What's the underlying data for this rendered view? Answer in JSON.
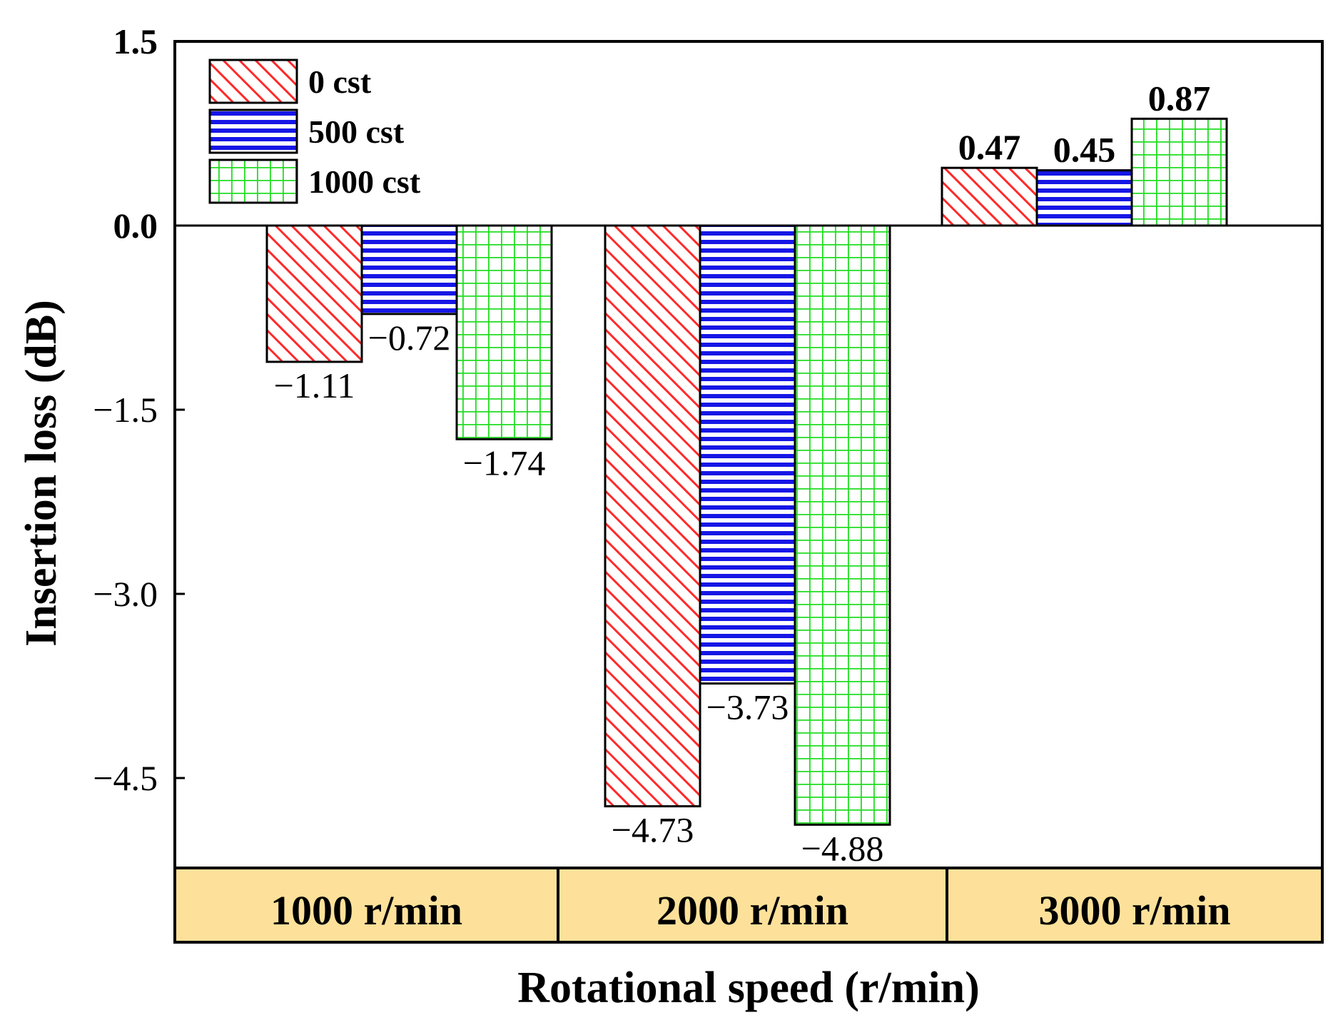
{
  "colors": {
    "series_0": "#ff2a2a",
    "series_1": "#1616e6",
    "series_2": "#22dd22",
    "category_band": "#fde19a",
    "axis": "#000000"
  },
  "chart_data": {
    "type": "bar",
    "title": "",
    "xlabel": "Rotational speed (r/min)",
    "ylabel": "Insertion loss (dB)",
    "ylim": [
      -5.25,
      1.5
    ],
    "yticks": [
      1.5,
      0.0,
      -1.5,
      -3.0,
      -4.5
    ],
    "ytick_labels": [
      "1.5",
      "0.0",
      "−1.5",
      "−3.0",
      "−4.5"
    ],
    "categories": [
      "1000 r/min",
      "2000 r/min",
      "3000 r/min"
    ],
    "legend_position": "top-left",
    "series": [
      {
        "name": "0 cst",
        "pattern": "diagonal-hatch",
        "values": [
          -1.11,
          -4.73,
          0.47
        ],
        "labels": [
          "−1.11",
          "−4.73",
          "0.47"
        ]
      },
      {
        "name": "500 cst",
        "pattern": "horizontal-lines",
        "values": [
          -0.72,
          -3.73,
          0.45
        ],
        "labels": [
          "−0.72",
          "−3.73",
          "0.45"
        ]
      },
      {
        "name": "1000 cst",
        "pattern": "grid",
        "values": [
          -1.74,
          -4.88,
          0.87
        ],
        "labels": [
          "−1.74",
          "−4.88",
          "0.87"
        ]
      }
    ]
  }
}
